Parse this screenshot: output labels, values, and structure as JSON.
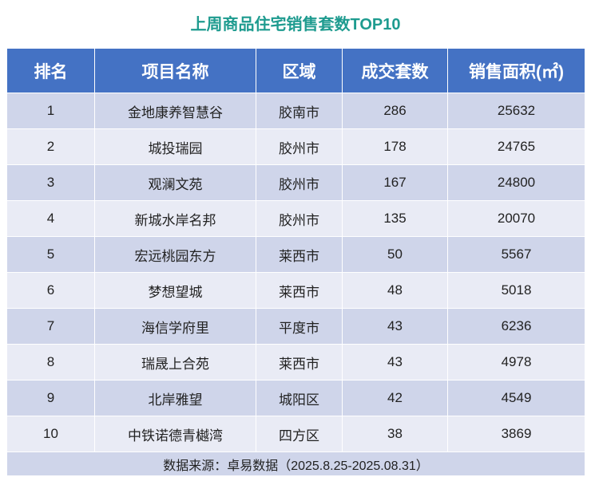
{
  "title": "上周商品住宅销售套数TOP10",
  "table": {
    "header": [
      "排名",
      "项目名称",
      "区域",
      "成交套数",
      "销售面积(㎡)"
    ],
    "rows": [
      [
        1,
        "金地康养智慧谷",
        "胶南市",
        286,
        25632
      ],
      [
        2,
        "城投瑞园",
        "胶州市",
        178,
        24765
      ],
      [
        3,
        "观澜文苑",
        "胶州市",
        167,
        24800
      ],
      [
        4,
        "新城水岸名邦",
        "胶州市",
        135,
        20070
      ],
      [
        5,
        "宏远桃园东方",
        "莱西市",
        50,
        5567
      ],
      [
        6,
        "梦想望城",
        "莱西市",
        48,
        5018
      ],
      [
        7,
        "海信学府里",
        "平度市",
        43,
        6236
      ],
      [
        8,
        "瑞晟上合苑",
        "莱西市",
        43,
        4978
      ],
      [
        9,
        "北岸雅望",
        "城阳区",
        42,
        4549
      ],
      [
        10,
        "中铁诺德青樾湾",
        "四方区",
        38,
        3869
      ]
    ],
    "footer": "数据来源：卓易数据（2025.8.25-2025.08.31）"
  }
}
